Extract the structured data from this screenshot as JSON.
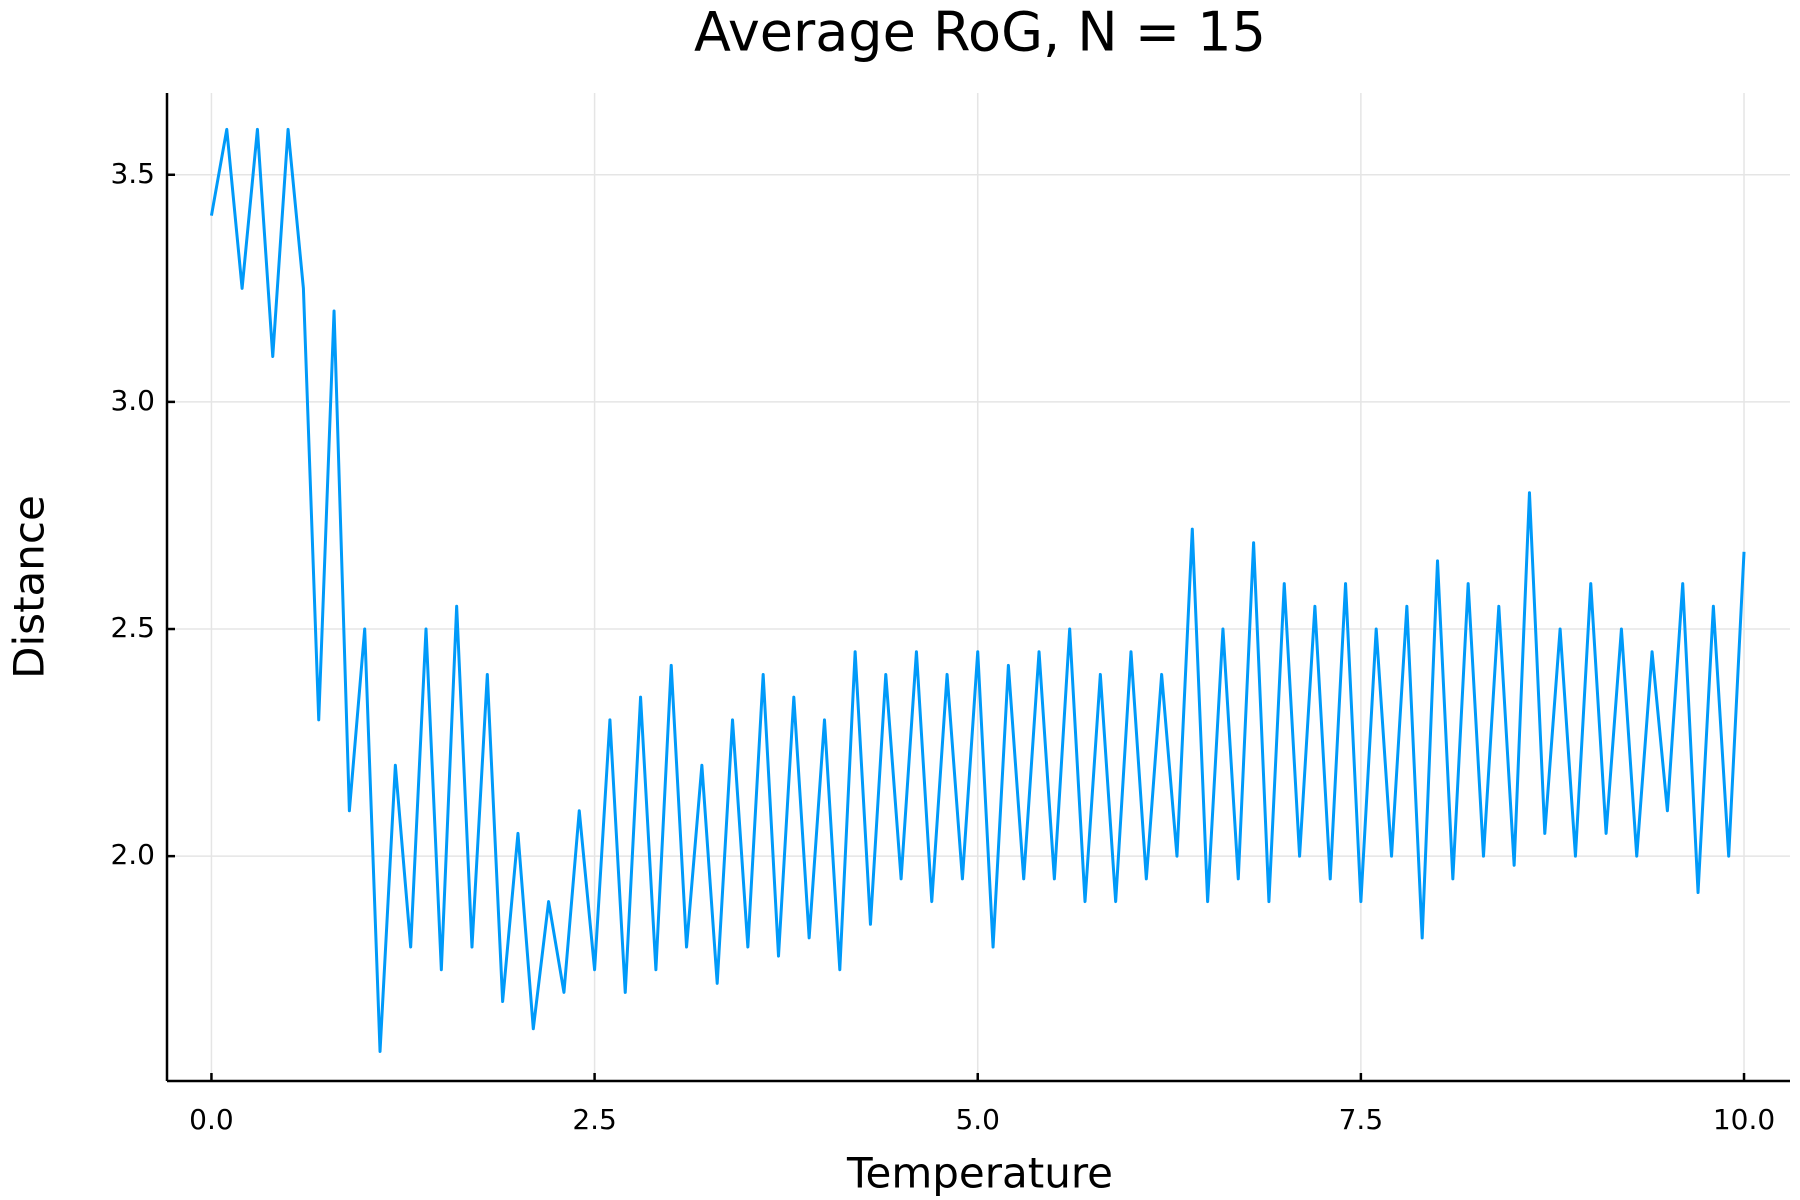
{
  "chart_data": {
    "type": "line",
    "title": "Average RoG, N = 15",
    "x_label": "Temperature",
    "y_label": "Distance",
    "color": "#009af9",
    "grid": true,
    "xlim": [
      -0.29,
      10.3
    ],
    "ylim": [
      1.505,
      3.68
    ],
    "xticks": [
      {
        "value": 0,
        "label": "0.0"
      },
      2.5,
      {
        "value": 5,
        "label": "5.0"
      },
      7.5,
      {
        "value": 10,
        "label": "10.0"
      }
    ],
    "yticks": [
      {
        "value": 2,
        "label": "2.0"
      },
      2.5,
      {
        "value": 3,
        "label": "3.0"
      },
      3.5
    ],
    "x": [
      0,
      0.1,
      0.2,
      0.3,
      0.4,
      0.5,
      0.6,
      0.7,
      0.8,
      0.9,
      1,
      1.1,
      1.2,
      1.3,
      1.4,
      1.5,
      1.6,
      1.7,
      1.8,
      1.9,
      2,
      2.1,
      2.2,
      2.3,
      2.4,
      2.5,
      2.6,
      2.7,
      2.8,
      2.9,
      3,
      3.1,
      3.2,
      3.3,
      3.4,
      3.5,
      3.6,
      3.7,
      3.8,
      3.9,
      4,
      4.1,
      4.2,
      4.3,
      4.4,
      4.5,
      4.6,
      4.7,
      4.8,
      4.9,
      5,
      5.1,
      5.2,
      5.3,
      5.4,
      5.5,
      5.6,
      5.7,
      5.8,
      5.9,
      6,
      6.1,
      6.2,
      6.3,
      6.4,
      6.5,
      6.6,
      6.7,
      6.8,
      6.9,
      7,
      7.1,
      7.2,
      7.3,
      7.4,
      7.5,
      7.6,
      7.7,
      7.8,
      7.9,
      8,
      8.1,
      8.2,
      8.3,
      8.4,
      8.5,
      8.6,
      8.7,
      8.8,
      8.9,
      9,
      9.1,
      9.2,
      9.3,
      9.4,
      9.5,
      9.6,
      9.7,
      9.8,
      9.9,
      10
    ],
    "values": [
      3.41,
      3.6,
      3.25,
      3.6,
      3.1,
      3.6,
      3.25,
      2.3,
      3.2,
      2.1,
      2.5,
      1.57,
      2.2,
      1.8,
      2.5,
      1.75,
      2.55,
      1.8,
      2.4,
      1.68,
      2.05,
      1.62,
      1.9,
      1.7,
      2.1,
      1.75,
      2.3,
      1.7,
      2.35,
      1.75,
      2.42,
      1.8,
      2.2,
      1.72,
      2.3,
      1.8,
      2.4,
      1.78,
      2.35,
      1.82,
      2.3,
      1.75,
      2.45,
      1.85,
      2.4,
      1.95,
      2.45,
      1.9,
      2.4,
      1.95,
      2.45,
      1.8,
      2.42,
      1.95,
      2.45,
      1.95,
      2.5,
      1.9,
      2.4,
      1.9,
      2.45,
      1.95,
      2.4,
      2.0,
      2.72,
      1.9,
      2.5,
      1.95,
      2.69,
      1.9,
      2.6,
      2.0,
      2.55,
      1.95,
      2.6,
      1.9,
      2.5,
      2.0,
      2.55,
      1.82,
      2.65,
      1.95,
      2.6,
      2.0,
      2.55,
      1.98,
      2.8,
      2.05,
      2.5,
      2.0,
      2.6,
      2.05,
      2.5,
      2.0,
      2.45,
      2.1,
      2.6,
      1.92,
      2.55,
      2.0,
      2.67
    ]
  }
}
